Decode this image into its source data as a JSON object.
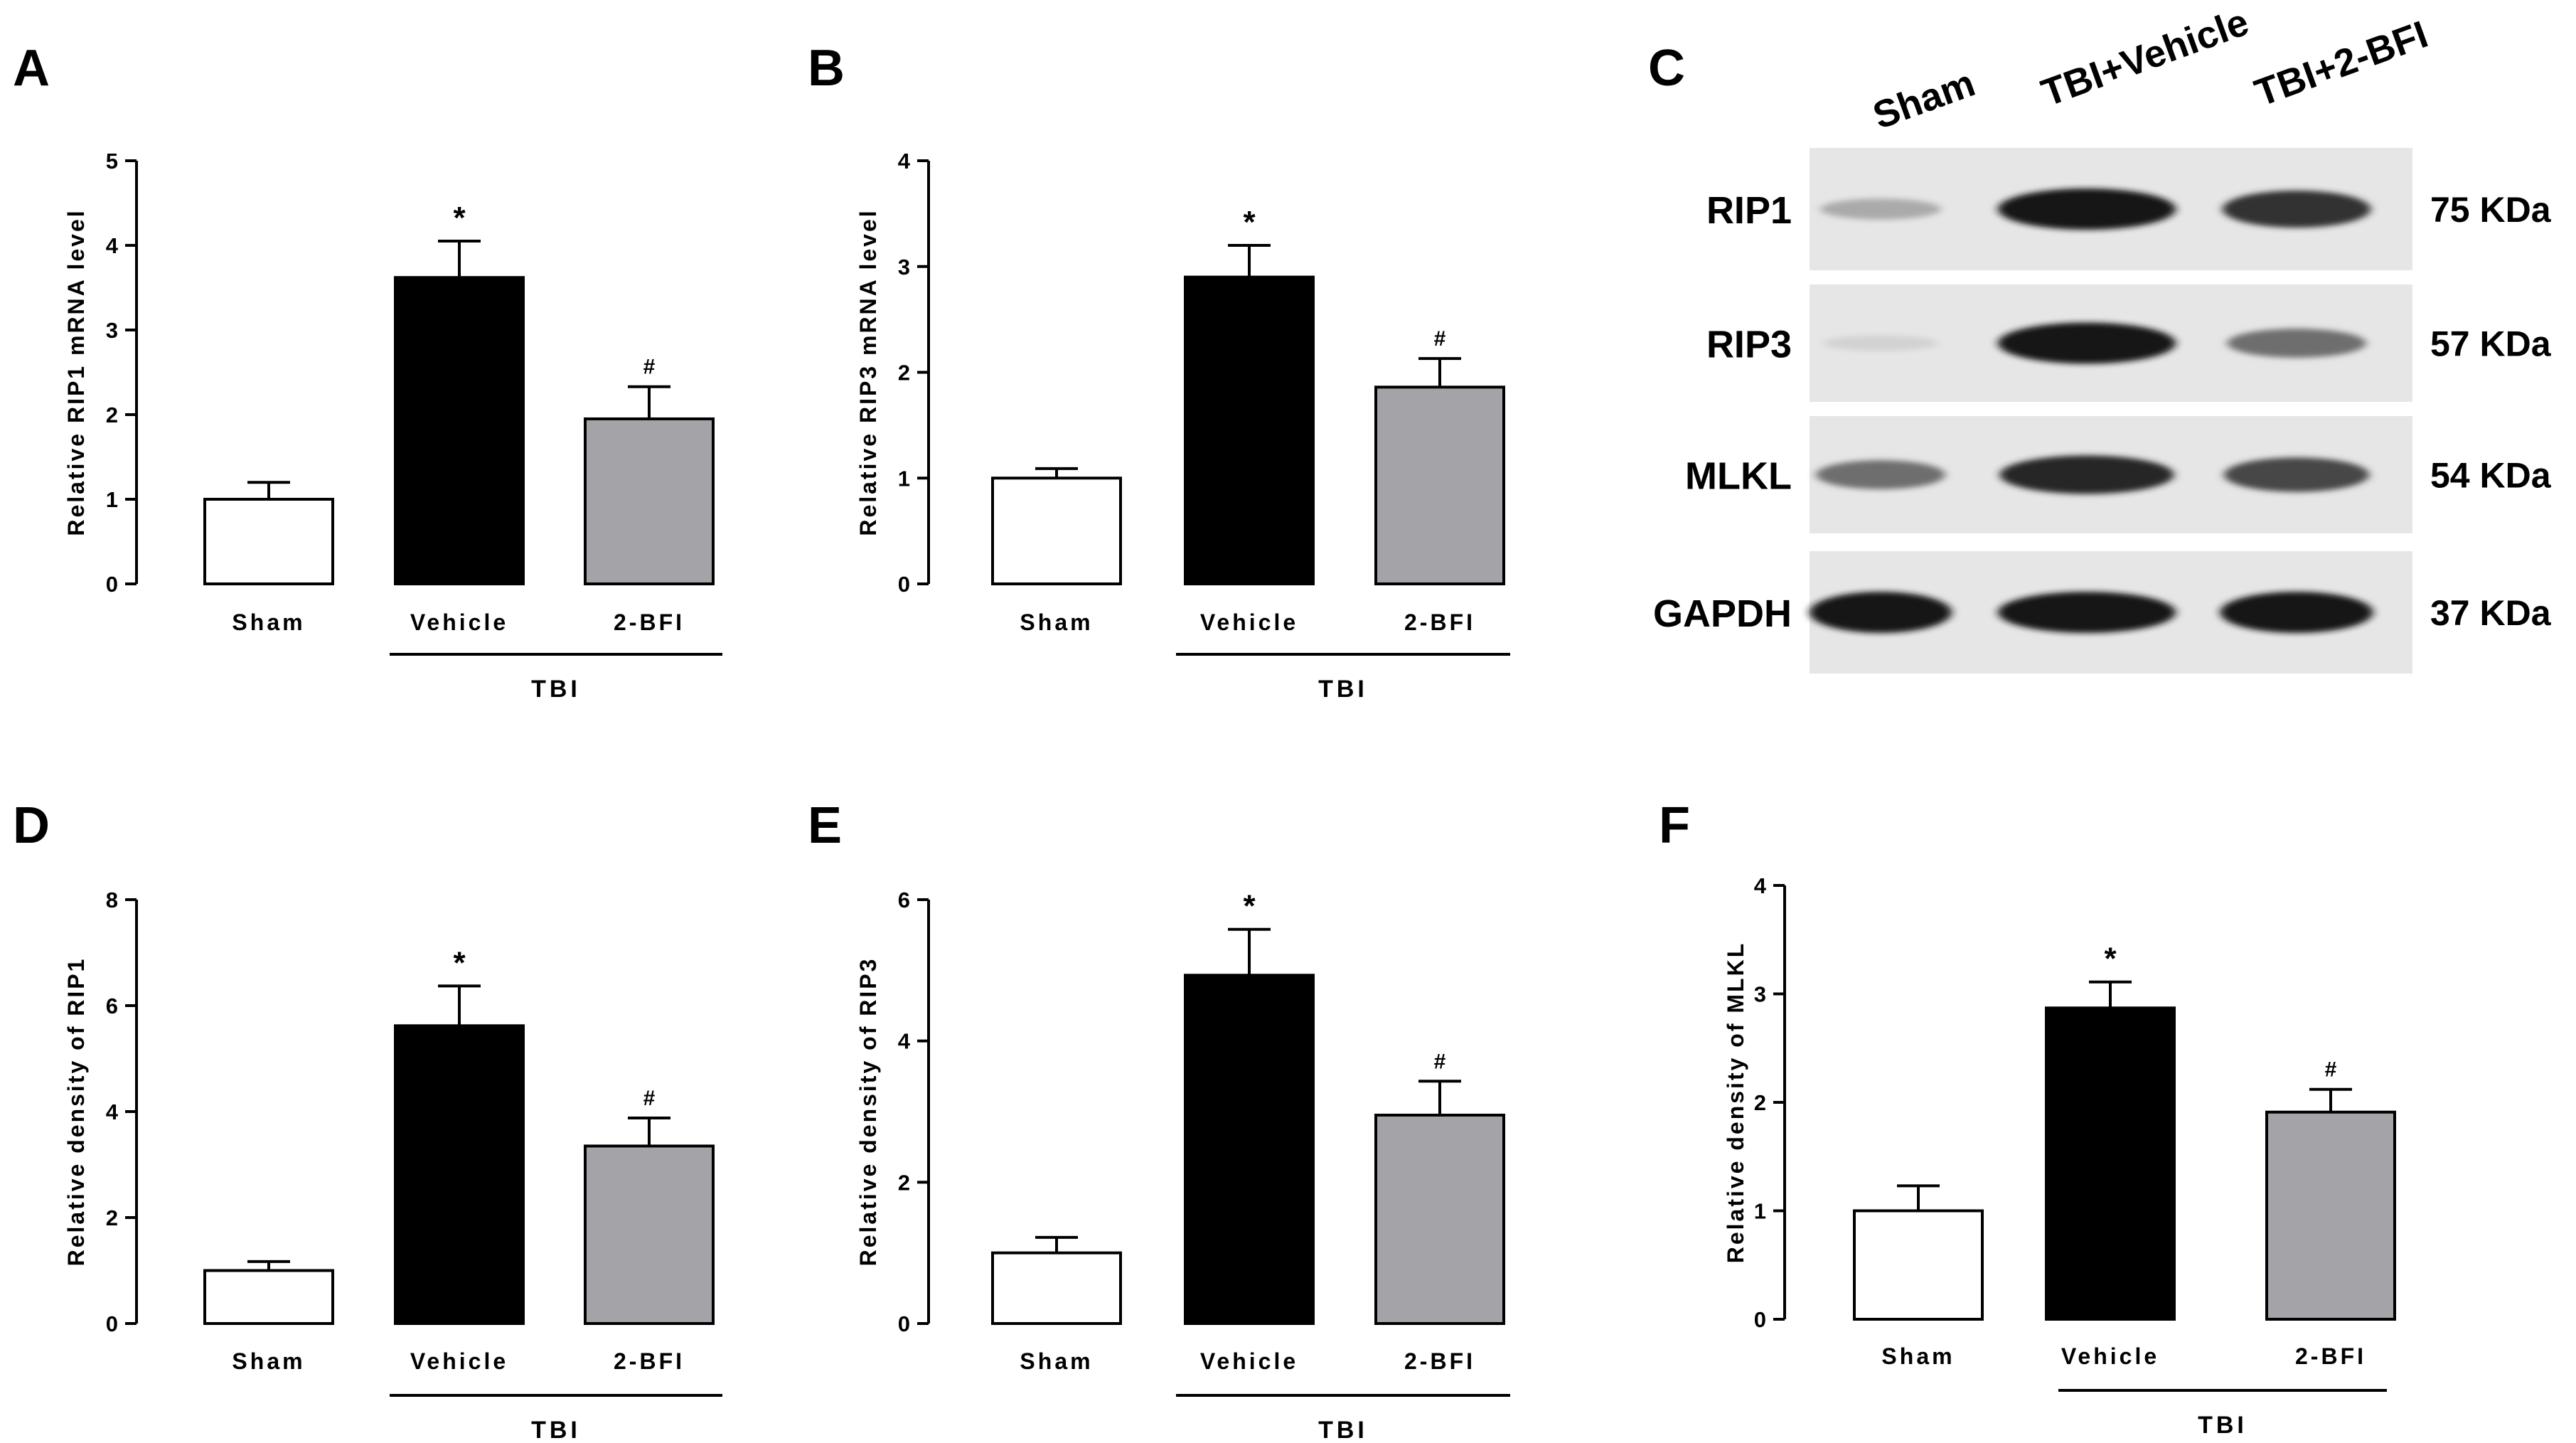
{
  "chart_data": [
    {
      "panel": "A",
      "type": "bar",
      "ylabel": "Relative RIP1 mRNA level",
      "ylim": [
        0,
        5
      ],
      "yticks": [
        0,
        1,
        2,
        3,
        4,
        5
      ],
      "categories": [
        "Sham",
        "Vehicle",
        "2-BFI"
      ],
      "group_label": "TBI",
      "values": [
        1.0,
        3.62,
        1.95
      ],
      "errors": [
        0.2,
        0.43,
        0.38
      ],
      "significance": [
        "",
        "*",
        "#"
      ],
      "bar_colors": [
        "#ffffff",
        "#000000",
        "#a3a3a8"
      ]
    },
    {
      "panel": "B",
      "type": "bar",
      "ylabel": "Relative RIP3 mRNA level",
      "ylim": [
        0,
        4
      ],
      "yticks": [
        0,
        1,
        2,
        3,
        4
      ],
      "categories": [
        "Sham",
        "Vehicle",
        "2-BFI"
      ],
      "group_label": "TBI",
      "values": [
        1.0,
        2.9,
        1.86
      ],
      "errors": [
        0.09,
        0.3,
        0.27
      ],
      "significance": [
        "",
        "*",
        "#"
      ],
      "bar_colors": [
        "#ffffff",
        "#000000",
        "#a3a3a8"
      ]
    },
    {
      "panel": "D",
      "type": "bar",
      "ylabel": "Relative density of RIP1",
      "ylim": [
        0,
        8
      ],
      "yticks": [
        0,
        2,
        4,
        6,
        8
      ],
      "categories": [
        "Sham",
        "Vehicle",
        "2-BFI"
      ],
      "group_label": "TBI",
      "values": [
        1.0,
        5.62,
        3.35
      ],
      "errors": [
        0.17,
        0.75,
        0.53
      ],
      "significance": [
        "",
        "*",
        "#"
      ],
      "bar_colors": [
        "#ffffff",
        "#000000",
        "#a3a3a8"
      ]
    },
    {
      "panel": "E",
      "type": "bar",
      "ylabel": "Relative density of RIP3",
      "ylim": [
        0,
        6
      ],
      "yticks": [
        0,
        2,
        4,
        6
      ],
      "categories": [
        "Sham",
        "Vehicle",
        "2-BFI"
      ],
      "group_label": "TBI",
      "values": [
        1.0,
        4.93,
        2.95
      ],
      "errors": [
        0.22,
        0.65,
        0.48
      ],
      "significance": [
        "",
        "*",
        "#"
      ],
      "bar_colors": [
        "#ffffff",
        "#000000",
        "#a3a3a8"
      ]
    },
    {
      "panel": "F",
      "type": "bar",
      "ylabel": "Relative density of MLKL",
      "ylim": [
        0,
        4
      ],
      "yticks": [
        0,
        1,
        2,
        3,
        4
      ],
      "categories": [
        "Sham",
        "Vehicle",
        "2-BFI"
      ],
      "group_label": "TBI",
      "values": [
        1.0,
        2.87,
        1.91
      ],
      "errors": [
        0.23,
        0.24,
        0.21
      ],
      "significance": [
        "",
        "*",
        "#"
      ],
      "bar_colors": [
        "#ffffff",
        "#000000",
        "#a3a3a8"
      ]
    }
  ],
  "western_blot": {
    "panel": "C",
    "lanes": [
      "Sham",
      "TBI+Vehicle",
      "TBI+2-BFI"
    ],
    "rows": [
      {
        "protein": "RIP1",
        "size": "75 KDa",
        "intensity": [
          0.25,
          1.0,
          0.85
        ]
      },
      {
        "protein": "RIP3",
        "size": "57 KDa",
        "intensity": [
          0.05,
          1.0,
          0.55
        ]
      },
      {
        "protein": "MLKL",
        "size": "54 KDa",
        "intensity": [
          0.55,
          0.9,
          0.75
        ]
      },
      {
        "protein": "GAPDH",
        "size": "37 KDa",
        "intensity": [
          1.0,
          1.0,
          1.0
        ]
      }
    ]
  }
}
